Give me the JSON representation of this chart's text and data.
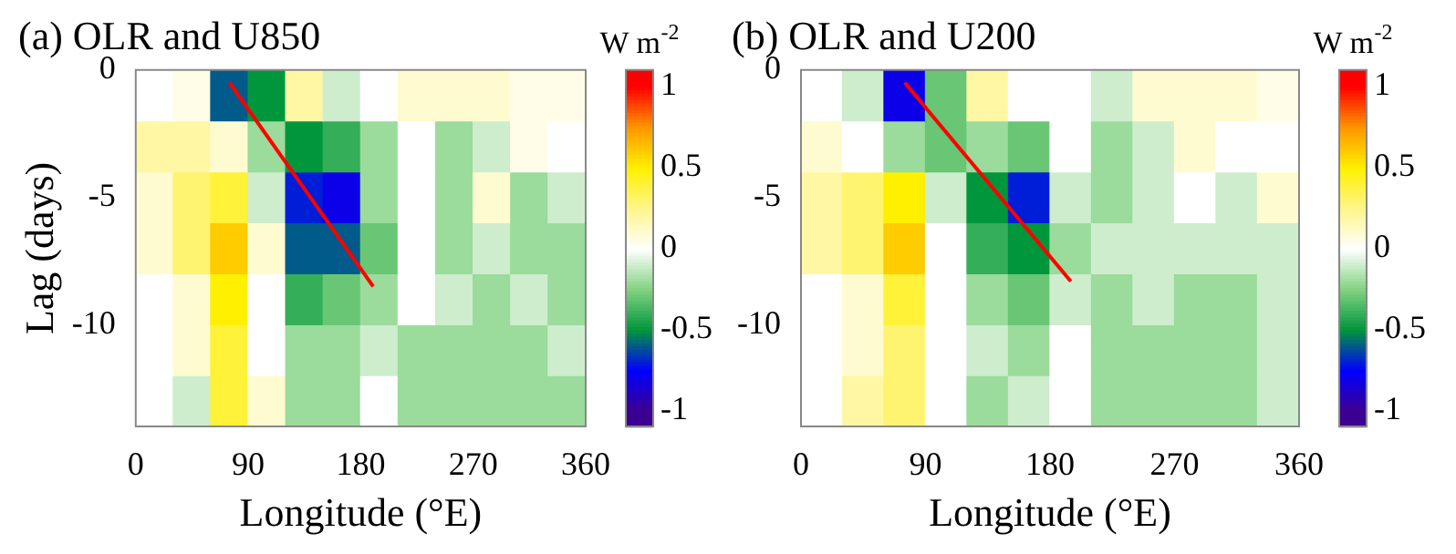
{
  "chart_data": [
    {
      "type": "heatmap",
      "title": "(a) OLR and U850",
      "xlabel": "Longitude (°E)",
      "ylabel": "Lag (days)",
      "clabel": "W m$^{-2}$",
      "x": [
        15,
        45,
        75,
        105,
        135,
        165,
        195,
        225,
        255,
        285,
        315,
        345
      ],
      "cells": [
        [
          0,
          0.05,
          -0.6,
          -0.5,
          0.2,
          -0.1,
          0,
          0.1,
          0.1,
          0.1,
          0.05,
          0.05
        ],
        [
          0.2,
          0.2,
          0.1,
          -0.2,
          -0.5,
          -0.4,
          -0.2,
          0,
          -0.2,
          -0.1,
          0.05,
          0
        ],
        [
          0.1,
          0.3,
          0.4,
          -0.1,
          -0.7,
          -0.8,
          -0.2,
          0,
          -0.2,
          0.1,
          -0.2,
          -0.1
        ],
        [
          0.1,
          0.3,
          0.6,
          0.1,
          -0.6,
          -0.6,
          -0.3,
          0,
          -0.2,
          -0.1,
          -0.2,
          -0.2
        ],
        [
          0,
          0.1,
          0.5,
          0,
          -0.4,
          -0.3,
          -0.2,
          0,
          -0.1,
          -0.2,
          -0.1,
          -0.2
        ],
        [
          0,
          0.1,
          0.4,
          0,
          -0.2,
          -0.2,
          -0.1,
          -0.2,
          -0.2,
          -0.2,
          -0.2,
          -0.1
        ],
        [
          0,
          -0.1,
          0.4,
          0.1,
          -0.2,
          -0.2,
          0,
          -0.2,
          -0.2,
          -0.2,
          -0.2,
          -0.2
        ]
      ],
      "clim": [
        -1.1,
        1.1
      ],
      "cticks": [
        -1,
        -0.5,
        0,
        0.5,
        1
      ],
      "xlim": [
        0,
        360
      ],
      "xticks": [
        0,
        90,
        180,
        270,
        360
      ],
      "ylim": [
        -14,
        0
      ],
      "yticks": [
        0,
        -5,
        -10
      ],
      "series": [
        {
          "type": "line",
          "color": "#ff0000",
          "line_style": "solid",
          "x": [
            75,
            190
          ],
          "values": [
            -0.5,
            -8.5
          ]
        }
      ]
    },
    {
      "type": "heatmap",
      "title": "(b) OLR and U200",
      "xlabel": "Longitude (°E)",
      "clabel": "W m$^{-2}$",
      "x": [
        15,
        45,
        75,
        105,
        135,
        165,
        195,
        225,
        255,
        285,
        315,
        345
      ],
      "cells": [
        [
          0,
          -0.1,
          -0.8,
          -0.3,
          0.2,
          0,
          0,
          -0.1,
          0.1,
          0.1,
          0.1,
          0.05
        ],
        [
          0.1,
          0,
          -0.2,
          -0.3,
          -0.2,
          -0.3,
          0,
          -0.2,
          -0.1,
          0.1,
          0,
          0
        ],
        [
          0.2,
          0.3,
          0.5,
          -0.1,
          -0.5,
          -0.7,
          -0.1,
          -0.2,
          -0.1,
          0,
          -0.1,
          0.1
        ],
        [
          0.2,
          0.3,
          0.6,
          0,
          -0.4,
          -0.5,
          -0.2,
          -0.1,
          -0.1,
          -0.1,
          -0.1,
          -0.1
        ],
        [
          0,
          0.1,
          0.4,
          0,
          -0.2,
          -0.3,
          -0.1,
          -0.2,
          -0.1,
          -0.2,
          -0.2,
          -0.1
        ],
        [
          0,
          0.1,
          0.3,
          0,
          -0.1,
          -0.2,
          0,
          -0.2,
          -0.2,
          -0.2,
          -0.2,
          -0.1
        ],
        [
          0,
          0.2,
          0.3,
          0,
          -0.2,
          -0.1,
          0,
          -0.2,
          -0.2,
          -0.2,
          -0.2,
          -0.1
        ]
      ],
      "clim": [
        -1.1,
        1.1
      ],
      "cticks": [
        -1,
        -0.5,
        0,
        0.5,
        1
      ],
      "xlim": [
        0,
        360
      ],
      "xticks": [
        0,
        90,
        180,
        270,
        360
      ],
      "ylim": [
        -14,
        0
      ],
      "yticks": [
        0,
        -5,
        -10
      ],
      "series": [
        {
          "type": "line",
          "color": "#ff0000",
          "line_style": "solid",
          "x": [
            75,
            195
          ],
          "values": [
            -0.5,
            -8.3
          ]
        }
      ]
    }
  ]
}
